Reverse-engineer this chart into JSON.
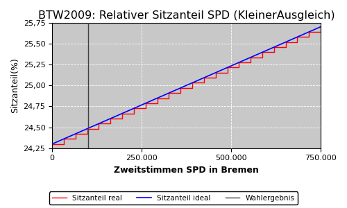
{
  "title": "BTW2009: Relativer Sitzanteil SPD (KleinerAusgleich)",
  "xlabel": "Zweitstimmen SPD in Bremen",
  "ylabel": "Sitzanteil(%)",
  "xlim": [
    0,
    750000
  ],
  "ylim": [
    24.25,
    25.75
  ],
  "yticks": [
    24.25,
    24.5,
    24.75,
    25.0,
    25.25,
    25.5,
    25.75
  ],
  "xticks": [
    0,
    250000,
    500000,
    750000
  ],
  "xtick_labels": [
    "0",
    "250.000",
    "500.000",
    "750.000"
  ],
  "wahlergebnis_x": 100000,
  "plot_bg": "#c8c8c8",
  "fig_bg": "#ffffff",
  "line_real_color": "#ff0000",
  "line_ideal_color": "#0000ff",
  "line_wahl_color": "#404040",
  "legend_labels": [
    "Sitzanteil real",
    "Sitzanteil ideal",
    "Wahlergebnis"
  ],
  "title_fontsize": 11.5,
  "label_fontsize": 9,
  "tick_fontsize": 8,
  "n_steps": 23,
  "x_start": 0,
  "x_end": 750000,
  "y_start": 24.3,
  "y_end": 25.7
}
